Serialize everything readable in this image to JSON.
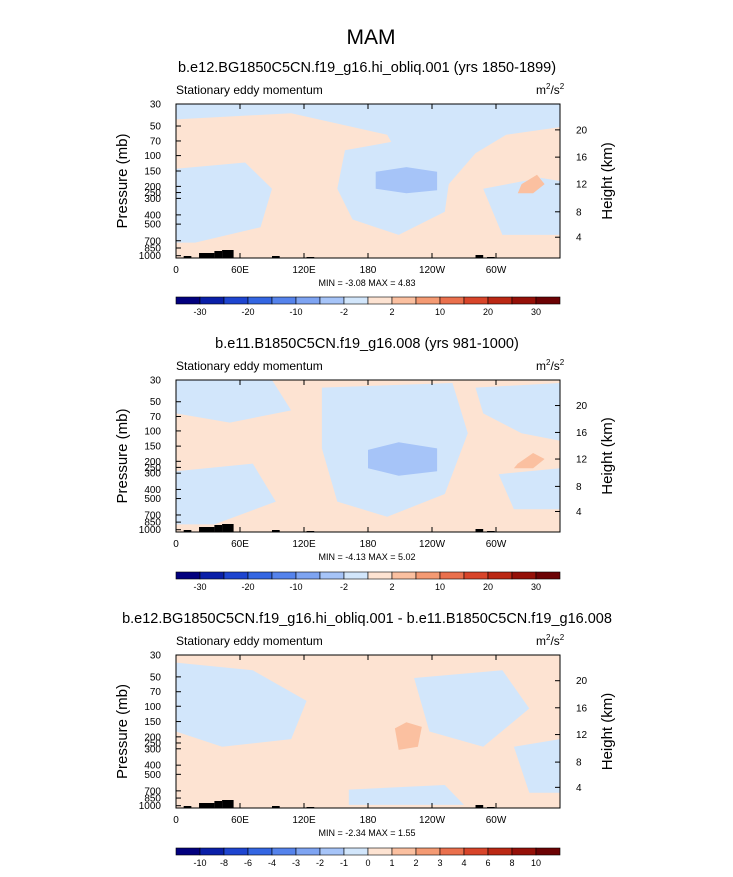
{
  "page": {
    "main_title": "MAM"
  },
  "colors": {
    "background": "#ffffff",
    "neutral_pos": "#fde3d2",
    "neutral_neg": "#d2e6fb",
    "topography": "#000000"
  },
  "chart_data": [
    {
      "type": "contour",
      "title": "b.e12.BG1850C5CN.f19_g16.hi_obliq.001 (yrs 1850-1899)",
      "left_label": "Stationary eddy momentum",
      "unit_base": "m",
      "unit_sup1": "2",
      "unit_mid": "/s",
      "unit_sup2": "2",
      "ylabel_left": "Pressure (mb)",
      "ylabel_right": "Height (km)",
      "xticks": [
        "0",
        "60E",
        "120E",
        "180",
        "120W",
        "60W"
      ],
      "pressure_ticks": [
        "30",
        "50",
        "70",
        "100",
        "150",
        "200",
        "250",
        "300",
        "400",
        "500",
        "700",
        "850",
        "1000"
      ],
      "height_ticks": [
        "20",
        "16",
        "12",
        "8",
        "4"
      ],
      "min": "-3.08",
      "max": "4.83",
      "min_label": "MIN =",
      "max_label": "MAX =",
      "colorbar_labels": [
        "-30",
        "-20",
        "-10",
        "-2",
        "2",
        "10",
        "20",
        "30"
      ],
      "colorbar_colors": [
        "#02007e",
        "#0a1fa8",
        "#1e45d0",
        "#3466e2",
        "#5583ec",
        "#7ea4f2",
        "#a6c4f8",
        "#d2e6fb",
        "#fde3d2",
        "#fbc0a0",
        "#f49a73",
        "#ea704d",
        "#d8452a",
        "#bb2814",
        "#951008",
        "#6c0204"
      ]
    },
    {
      "type": "contour",
      "title": "b.e11.B1850C5CN.f19_g16.008 (yrs 981-1000)",
      "left_label": "Stationary eddy momentum",
      "unit_base": "m",
      "unit_sup1": "2",
      "unit_mid": "/s",
      "unit_sup2": "2",
      "ylabel_left": "Pressure (mb)",
      "ylabel_right": "Height (km)",
      "xticks": [
        "0",
        "60E",
        "120E",
        "180",
        "120W",
        "60W"
      ],
      "pressure_ticks": [
        "30",
        "50",
        "70",
        "100",
        "150",
        "200",
        "250",
        "300",
        "400",
        "500",
        "700",
        "850",
        "1000"
      ],
      "height_ticks": [
        "20",
        "16",
        "12",
        "8",
        "4"
      ],
      "min": "-4.13",
      "max": "5.02",
      "min_label": "MIN =",
      "max_label": "MAX =",
      "colorbar_labels": [
        "-30",
        "-20",
        "-10",
        "-2",
        "2",
        "10",
        "20",
        "30"
      ],
      "colorbar_colors": [
        "#02007e",
        "#0a1fa8",
        "#1e45d0",
        "#3466e2",
        "#5583ec",
        "#7ea4f2",
        "#a6c4f8",
        "#d2e6fb",
        "#fde3d2",
        "#fbc0a0",
        "#f49a73",
        "#ea704d",
        "#d8452a",
        "#bb2814",
        "#951008",
        "#6c0204"
      ]
    },
    {
      "type": "contour",
      "title": "b.e12.BG1850C5CN.f19_g16.hi_obliq.001 - b.e11.B1850C5CN.f19_g16.008",
      "left_label": "Stationary eddy momentum",
      "unit_base": "m",
      "unit_sup1": "2",
      "unit_mid": "/s",
      "unit_sup2": "2",
      "ylabel_left": "Pressure (mb)",
      "ylabel_right": "Height (km)",
      "xticks": [
        "0",
        "60E",
        "120E",
        "180",
        "120W",
        "60W"
      ],
      "pressure_ticks": [
        "30",
        "50",
        "70",
        "100",
        "150",
        "200",
        "250",
        "300",
        "400",
        "500",
        "700",
        "850",
        "1000"
      ],
      "height_ticks": [
        "20",
        "16",
        "12",
        "8",
        "4"
      ],
      "min": "-2.34",
      "max": "1.55",
      "min_label": "MIN =",
      "max_label": "MAX =",
      "colorbar_labels": [
        "-10",
        "-8",
        "-6",
        "-4",
        "-3",
        "-2",
        "-1",
        "0",
        "1",
        "2",
        "3",
        "4",
        "6",
        "8",
        "10"
      ],
      "colorbar_colors": [
        "#02007e",
        "#0a1fa8",
        "#1e45d0",
        "#3466e2",
        "#5583ec",
        "#7ea4f2",
        "#a6c4f8",
        "#d2e6fb",
        "#fde3d2",
        "#fbc0a0",
        "#f49a73",
        "#ea704d",
        "#d8452a",
        "#bb2814",
        "#951008",
        "#6c0204"
      ]
    }
  ]
}
